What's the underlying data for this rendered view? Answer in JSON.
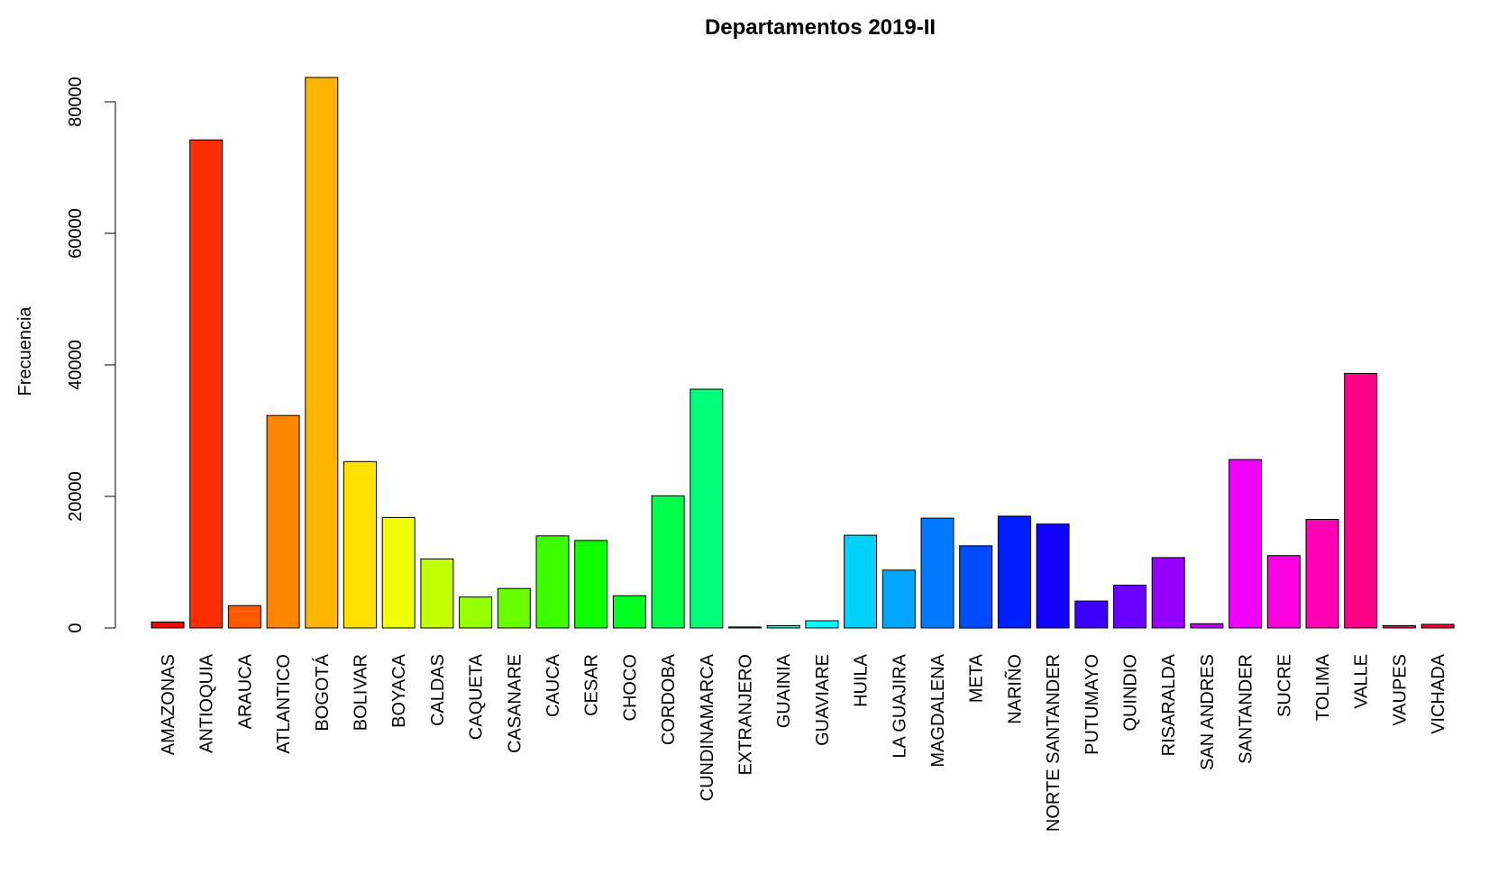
{
  "chart_data": {
    "type": "bar",
    "title": "Departamentos 2019-II",
    "xlabel": "",
    "ylabel": "Frecuencia",
    "ylim": [
      0,
      84000
    ],
    "yticks": [
      0,
      20000,
      40000,
      60000,
      80000
    ],
    "yticklabels": [
      "0",
      "20000",
      "40000",
      "60000",
      "80000"
    ],
    "grid": false,
    "categories": [
      "AMAZONAS",
      "ANTIOQUIA",
      "ARAUCA",
      "ATLANTICO",
      "BOGOTÁ",
      "BOLIVAR",
      "BOYACA",
      "CALDAS",
      "CAQUETA",
      "CASANARE",
      "CAUCA",
      "CESAR",
      "CHOCO",
      "CORDOBA",
      "CUNDINAMARCA",
      "EXTRANJERO",
      "GUAINIA",
      "GUAVIARE",
      "HUILA",
      "LA GUAJIRA",
      "MAGDALENA",
      "META",
      "NARIÑO",
      "NORTE SANTANDER",
      "PUTUMAYO",
      "QUINDIO",
      "RISARALDA",
      "SAN ANDRES",
      "SANTANDER",
      "SUCRE",
      "TOLIMA",
      "VALLE",
      "VAUPES",
      "VICHADA"
    ],
    "values": [
      900,
      74200,
      3400,
      32300,
      83700,
      25300,
      16800,
      10500,
      4700,
      6000,
      14000,
      13300,
      4900,
      20100,
      36300,
      150,
      350,
      1100,
      14100,
      8800,
      16700,
      12500,
      17000,
      15800,
      4100,
      6500,
      10700,
      650,
      25600,
      11000,
      16500,
      38700,
      350,
      550
    ],
    "colors": [
      "#FF0000",
      "#FF2D00",
      "#FF5A00",
      "#FF8700",
      "#FFB400",
      "#FFE100",
      "#F0FF00",
      "#C3FF00",
      "#96FF00",
      "#69FF00",
      "#3CFF00",
      "#0FFF00",
      "#00FF1E",
      "#00FF4B",
      "#00FF78",
      "#00FFA5",
      "#00FFD2",
      "#00FFFF",
      "#00D2FF",
      "#00A5FF",
      "#0078FF",
      "#004BFF",
      "#001EFF",
      "#0F00FF",
      "#3C00FF",
      "#6900FF",
      "#9600FF",
      "#C300FF",
      "#F000FF",
      "#FF00E1",
      "#FF00B4",
      "#FF0087",
      "#FF005A",
      "#FF002D"
    ]
  }
}
